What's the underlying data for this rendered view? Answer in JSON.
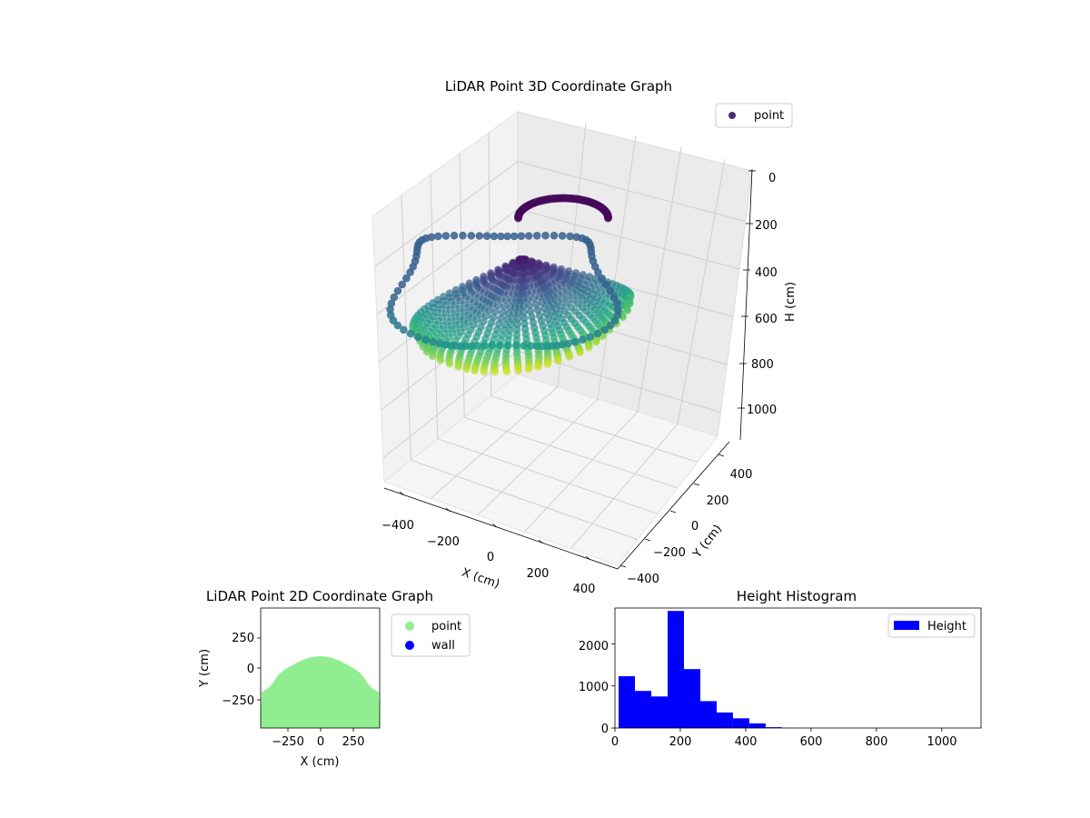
{
  "chart_data": [
    {
      "type": "scatter",
      "projection": "3d",
      "title": "LiDAR Point 3D Coordinate Graph",
      "xlabel": "X (cm)",
      "ylabel": "Y (cm)",
      "zlabel": "H (cm)",
      "x_ticks": [
        "−400",
        "−200",
        "0",
        "200",
        "400"
      ],
      "y_ticks": [
        "−400",
        "−200",
        "0",
        "200",
        "400"
      ],
      "z_ticks": [
        "0",
        "200",
        "400",
        "600",
        "800",
        "1000"
      ],
      "xlim": [
        -450,
        450
      ],
      "ylim": [
        -450,
        450
      ],
      "zlim": [
        0,
        1100
      ],
      "z_inverted": true,
      "grid": true,
      "colormap": "viridis",
      "legend": {
        "position": "top-right",
        "entries": [
          "point"
        ]
      },
      "series": [
        {
          "name": "point",
          "color": "#472d7b",
          "shape": "half-dome of points (loops)"
        }
      ]
    },
    {
      "type": "scatter",
      "title": "LiDAR Point 2D Coordinate Graph",
      "xlabel": "X (cm)",
      "ylabel": "Y (cm)",
      "x_ticks": [
        "−250",
        "0",
        "250"
      ],
      "y_ticks": [
        "250",
        "0",
        "−250"
      ],
      "xlim": [
        -460,
        460
      ],
      "ylim": [
        -460,
        460
      ],
      "grid": false,
      "legend": {
        "position": "outside-right",
        "entries": [
          "point",
          "wall"
        ]
      },
      "series": [
        {
          "name": "point",
          "color": "#90ee90"
        },
        {
          "name": "wall",
          "color": "#0000ff"
        }
      ]
    },
    {
      "type": "bar",
      "subtype": "histogram",
      "title": "Height Histogram",
      "xlim": [
        0,
        1120
      ],
      "ylim": [
        0,
        2850
      ],
      "x_ticks": [
        "0",
        "200",
        "400",
        "600",
        "800",
        "1000"
      ],
      "y_ticks": [
        "0",
        "1000",
        "2000"
      ],
      "bin_width": 50,
      "bin_edges": [
        0,
        50,
        100,
        150,
        200,
        250,
        300,
        350,
        400,
        450,
        500,
        550,
        600,
        650,
        700,
        750,
        800,
        850,
        900,
        950,
        1000,
        1050,
        1100
      ],
      "values": [
        1230,
        880,
        750,
        2780,
        1400,
        640,
        370,
        230,
        110,
        20,
        5,
        0,
        0,
        0,
        0,
        0,
        0,
        0,
        0,
        0,
        0,
        0
      ],
      "color": "#0000ff",
      "legend": {
        "position": "top-right",
        "entries": [
          "Height"
        ]
      },
      "series": [
        {
          "name": "Height"
        }
      ]
    }
  ]
}
